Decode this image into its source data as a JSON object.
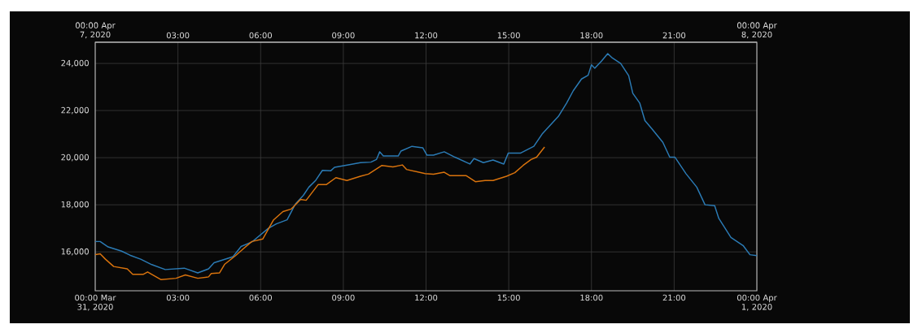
{
  "chart_data": {
    "type": "line",
    "grid": true,
    "line_style": "solid",
    "xlim": [
      0,
      24
    ],
    "ylim": [
      14350,
      24900
    ],
    "xticks": [
      {
        "value": 0,
        "label": "00:00 Mar 31, 2020"
      },
      {
        "value": 3,
        "label": "03:00"
      },
      {
        "value": 6,
        "label": "06:00"
      },
      {
        "value": 9,
        "label": "09:00"
      },
      {
        "value": 12,
        "label": "12:00"
      },
      {
        "value": 15,
        "label": "15:00"
      },
      {
        "value": 18,
        "label": "18:00"
      },
      {
        "value": 21,
        "label": "21:00"
      },
      {
        "value": 24,
        "label": "00:00 Apr 1, 2020"
      }
    ],
    "x2lim": [
      0,
      24
    ],
    "x2ticks": [
      {
        "value": 0,
        "label": "00:00 Apr 7, 2020"
      },
      {
        "value": 3,
        "label": "03:00"
      },
      {
        "value": 6,
        "label": "06:00"
      },
      {
        "value": 9,
        "label": "09:00"
      },
      {
        "value": 12,
        "label": "12:00"
      },
      {
        "value": 15,
        "label": "15:00"
      },
      {
        "value": 18,
        "label": "18:00"
      },
      {
        "value": 21,
        "label": "21:00"
      },
      {
        "value": 24,
        "label": "00:00 Apr 8, 2020"
      }
    ],
    "yticks": [
      {
        "value": 16000,
        "label": "16,000"
      },
      {
        "value": 18000,
        "label": "18,000"
      },
      {
        "value": 20000,
        "label": "20,000"
      },
      {
        "value": 22000,
        "label": "22,000"
      },
      {
        "value": 24000,
        "label": "24,000"
      }
    ],
    "series": [
      {
        "color": "#2b7bb5",
        "x": [
          0,
          0.18,
          0.47,
          0.96,
          1.26,
          1.65,
          2.05,
          2.54,
          3.23,
          3.72,
          4.11,
          4.31,
          5.0,
          5.29,
          5.68,
          6.27,
          6.57,
          6.96,
          7.26,
          7.55,
          7.75,
          8.0,
          8.24,
          8.54,
          8.68,
          9.22,
          9.62,
          10.0,
          10.2,
          10.32,
          10.45,
          10.99,
          11.09,
          11.49,
          11.88,
          12.03,
          12.27,
          12.66,
          13.05,
          13.59,
          13.74,
          14.08,
          14.43,
          14.82,
          14.98,
          15.42,
          15.91,
          16.21,
          16.8,
          17.1,
          17.34,
          17.64,
          17.88,
          18.0,
          18.12,
          18.37,
          18.59,
          18.76,
          19.06,
          19.35,
          19.5,
          19.75,
          19.94,
          20.19,
          20.59,
          20.84,
          21.03,
          21.43,
          21.82,
          22.12,
          22.47,
          22.62,
          23.06,
          23.5,
          23.75,
          24.0
        ],
        "values": [
          16440,
          16440,
          16210,
          16030,
          15860,
          15690,
          15460,
          15250,
          15310,
          15110,
          15280,
          15540,
          15800,
          16230,
          16420,
          16990,
          17190,
          17360,
          18030,
          18400,
          18750,
          19040,
          19460,
          19440,
          19590,
          19700,
          19790,
          19810,
          19920,
          20250,
          20070,
          20070,
          20280,
          20480,
          20420,
          20110,
          20110,
          20250,
          20020,
          19730,
          19960,
          19790,
          19900,
          19730,
          20190,
          20190,
          20480,
          21000,
          21750,
          22320,
          22840,
          23340,
          23500,
          23940,
          23800,
          24110,
          24420,
          24230,
          24000,
          23480,
          22730,
          22320,
          21570,
          21230,
          20650,
          20020,
          20020,
          19320,
          18750,
          18000,
          17960,
          17420,
          16610,
          16270,
          15880,
          15840
        ]
      },
      {
        "color": "#d9730d",
        "axis": "x2",
        "x": [
          0,
          0.18,
          0.37,
          0.67,
          1.16,
          1.36,
          1.75,
          1.9,
          2.39,
          2.93,
          3.27,
          3.72,
          4.11,
          4.21,
          4.51,
          4.7,
          5.09,
          5.39,
          5.68,
          6.08,
          6.47,
          6.81,
          7.11,
          7.45,
          7.65,
          8.09,
          8.39,
          8.73,
          9.13,
          9.62,
          9.91,
          10.4,
          10.8,
          11.14,
          11.29,
          11.97,
          12.27,
          12.66,
          12.86,
          13.45,
          13.79,
          14.14,
          14.43,
          14.92,
          15.22,
          15.52,
          15.81,
          16.01,
          16.3
        ],
        "values": [
          15880,
          15920,
          15690,
          15380,
          15280,
          15050,
          15050,
          15150,
          14820,
          14880,
          15020,
          14880,
          14940,
          15080,
          15110,
          15480,
          15840,
          16150,
          16440,
          16550,
          17360,
          17710,
          17820,
          18230,
          18190,
          18860,
          18860,
          19150,
          19030,
          19210,
          19300,
          19670,
          19610,
          19690,
          19500,
          19320,
          19300,
          19380,
          19240,
          19240,
          18980,
          19030,
          19030,
          19210,
          19360,
          19670,
          19920,
          20020,
          20450
        ]
      }
    ]
  }
}
